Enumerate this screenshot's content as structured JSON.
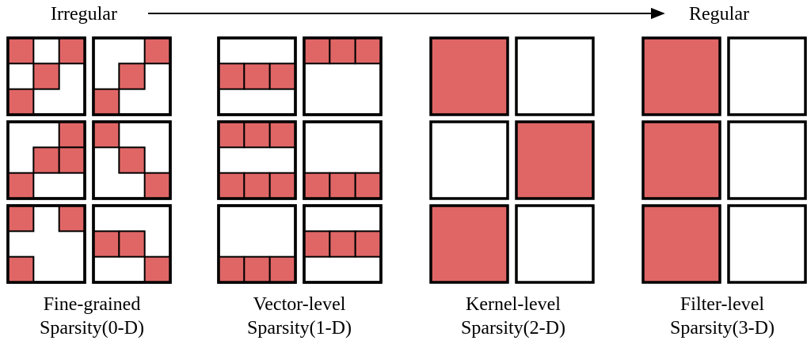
{
  "header": {
    "left_label": "Irregular",
    "right_label": "Regular"
  },
  "colors": {
    "pruned": "#e06666",
    "border": "#000000",
    "background": "#ffffff"
  },
  "grid_note": "each kernel is a 3x3 grid; cells listed as [row, col] are pruned (red)",
  "groups": [
    {
      "name": "fine-grained",
      "caption_line1": "Fine-grained",
      "caption_line2": "Sparsity(0-D)",
      "kernels": [
        [
          [
            [
              0,
              0
            ],
            [
              0,
              2
            ],
            [
              1,
              1
            ],
            [
              2,
              0
            ]
          ],
          [
            [
              0,
              2
            ],
            [
              1,
              1
            ],
            [
              2,
              0
            ]
          ]
        ],
        [
          [
            [
              0,
              2
            ],
            [
              1,
              1
            ],
            [
              1,
              2
            ],
            [
              2,
              0
            ]
          ],
          [
            [
              0,
              0
            ],
            [
              1,
              1
            ],
            [
              2,
              2
            ]
          ]
        ],
        [
          [
            [
              0,
              0
            ],
            [
              0,
              2
            ],
            [
              2,
              0
            ]
          ],
          [
            [
              1,
              0
            ],
            [
              1,
              1
            ],
            [
              2,
              2
            ]
          ]
        ]
      ]
    },
    {
      "name": "vector-level",
      "caption_line1": "Vector-level",
      "caption_line2": "Sparsity(1-D)",
      "kernels": [
        [
          [
            [
              1,
              0
            ],
            [
              1,
              1
            ],
            [
              1,
              2
            ]
          ],
          [
            [
              0,
              0
            ],
            [
              0,
              1
            ],
            [
              0,
              2
            ]
          ]
        ],
        [
          [
            [
              0,
              0
            ],
            [
              0,
              1
            ],
            [
              0,
              2
            ],
            [
              2,
              0
            ],
            [
              2,
              1
            ],
            [
              2,
              2
            ]
          ],
          [
            [
              2,
              0
            ],
            [
              2,
              1
            ],
            [
              2,
              2
            ]
          ]
        ],
        [
          [
            [
              2,
              0
            ],
            [
              2,
              1
            ],
            [
              2,
              2
            ]
          ],
          [
            [
              1,
              0
            ],
            [
              1,
              1
            ],
            [
              1,
              2
            ]
          ]
        ]
      ]
    },
    {
      "name": "kernel-level",
      "caption_line1": "Kernel-level",
      "caption_line2": "Sparsity(2-D)",
      "kernels": [
        [
          "full",
          "empty"
        ],
        [
          "empty",
          "full"
        ],
        [
          "full",
          "empty"
        ]
      ]
    },
    {
      "name": "filter-level",
      "caption_line1": "Filter-level",
      "caption_line2": "Sparsity(3-D)",
      "kernels": [
        [
          "full",
          "empty"
        ],
        [
          "full",
          "empty"
        ],
        [
          "full",
          "empty"
        ]
      ]
    }
  ]
}
